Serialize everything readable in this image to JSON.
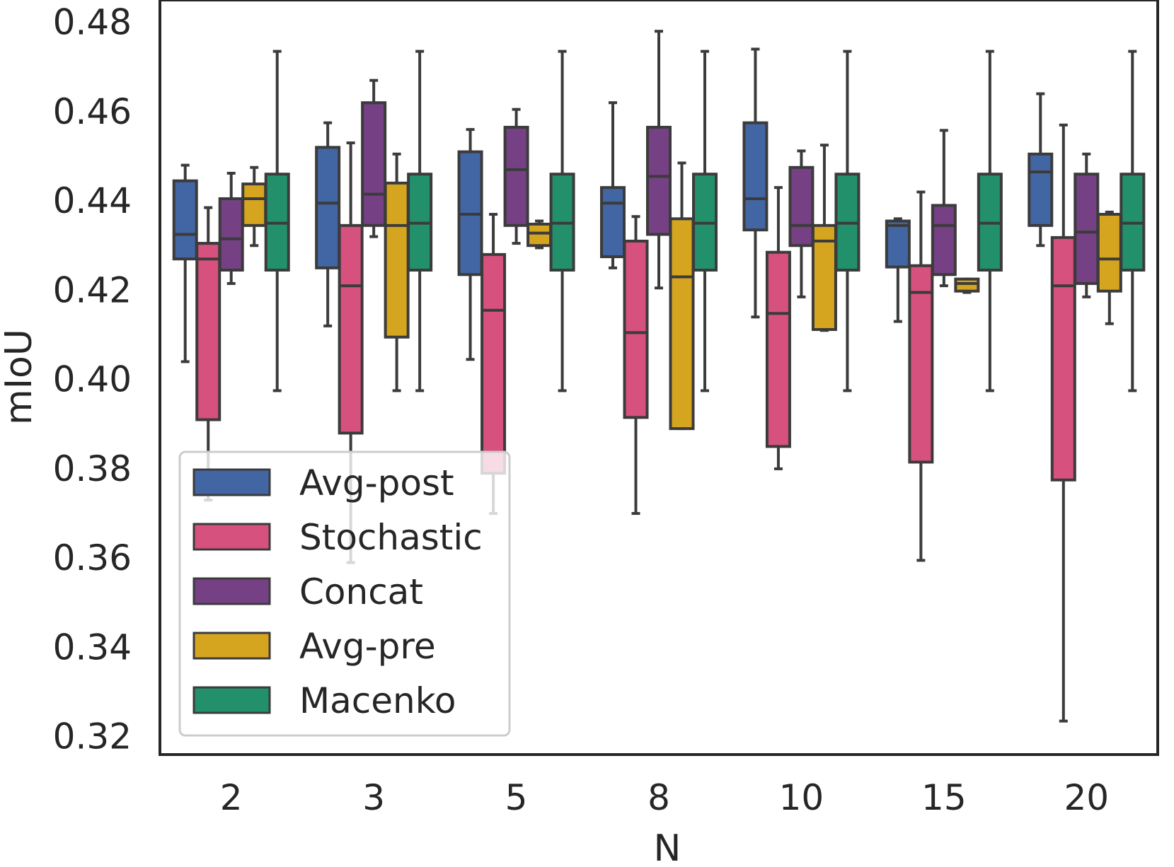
{
  "chart_data": {
    "type": "boxplot",
    "xlabel": "N",
    "ylabel": "mIoU",
    "ylim": [
      0.316,
      0.485
    ],
    "yticks": [
      "0.32",
      "0.34",
      "0.36",
      "0.38",
      "0.40",
      "0.42",
      "0.44",
      "0.46",
      "0.48"
    ],
    "categories": [
      "2",
      "3",
      "5",
      "8",
      "10",
      "15",
      "20"
    ],
    "legend_position": "lower-left",
    "series": [
      {
        "name": "Avg-post",
        "color": "#4266a3",
        "boxes": [
          {
            "whislo": 0.404,
            "q1": 0.427,
            "med": 0.4325,
            "q3": 0.4445,
            "whishi": 0.448
          },
          {
            "whislo": 0.412,
            "q1": 0.425,
            "med": 0.4395,
            "q3": 0.452,
            "whishi": 0.4575
          },
          {
            "whislo": 0.4045,
            "q1": 0.4235,
            "med": 0.437,
            "q3": 0.451,
            "whishi": 0.456
          },
          {
            "whislo": 0.425,
            "q1": 0.4275,
            "med": 0.4395,
            "q3": 0.443,
            "whishi": 0.462
          },
          {
            "whislo": 0.414,
            "q1": 0.4335,
            "med": 0.4405,
            "q3": 0.4575,
            "whishi": 0.474
          },
          {
            "whislo": 0.413,
            "q1": 0.4252,
            "med": 0.4345,
            "q3": 0.4355,
            "whishi": 0.436
          },
          {
            "whislo": 0.43,
            "q1": 0.4345,
            "med": 0.4465,
            "q3": 0.4505,
            "whishi": 0.464
          }
        ]
      },
      {
        "name": "Stochastic",
        "color": "#d6517d",
        "boxes": [
          {
            "whislo": 0.373,
            "q1": 0.391,
            "med": 0.427,
            "q3": 0.4305,
            "whishi": 0.4385
          },
          {
            "whislo": 0.359,
            "q1": 0.388,
            "med": 0.421,
            "q3": 0.4345,
            "whishi": 0.453
          },
          {
            "whislo": 0.37,
            "q1": 0.379,
            "med": 0.4155,
            "q3": 0.428,
            "whishi": 0.437
          },
          {
            "whislo": 0.37,
            "q1": 0.3915,
            "med": 0.4105,
            "q3": 0.431,
            "whishi": 0.4365
          },
          {
            "whislo": 0.38,
            "q1": 0.385,
            "med": 0.4148,
            "q3": 0.4285,
            "whishi": 0.443
          },
          {
            "whislo": 0.3595,
            "q1": 0.3815,
            "med": 0.4195,
            "q3": 0.4255,
            "whishi": 0.442
          },
          {
            "whislo": 0.3235,
            "q1": 0.3775,
            "med": 0.421,
            "q3": 0.4318,
            "whishi": 0.457
          }
        ]
      },
      {
        "name": "Concat",
        "color": "#754084",
        "boxes": [
          {
            "whislo": 0.4215,
            "q1": 0.4245,
            "med": 0.4315,
            "q3": 0.4405,
            "whishi": 0.4462
          },
          {
            "whislo": 0.432,
            "q1": 0.4345,
            "med": 0.4415,
            "q3": 0.462,
            "whishi": 0.467
          },
          {
            "whislo": 0.4305,
            "q1": 0.4345,
            "med": 0.447,
            "q3": 0.4565,
            "whishi": 0.4605
          },
          {
            "whislo": 0.4205,
            "q1": 0.4325,
            "med": 0.4455,
            "q3": 0.4565,
            "whishi": 0.478
          },
          {
            "whislo": 0.4185,
            "q1": 0.43,
            "med": 0.4345,
            "q3": 0.4475,
            "whishi": 0.4512
          },
          {
            "whislo": 0.421,
            "q1": 0.4235,
            "med": 0.4345,
            "q3": 0.439,
            "whishi": 0.4558
          },
          {
            "whislo": 0.4185,
            "q1": 0.4215,
            "med": 0.433,
            "q3": 0.446,
            "whishi": 0.4505
          }
        ]
      },
      {
        "name": "Avg-pre",
        "color": "#d6a520",
        "boxes": [
          {
            "whislo": 0.43,
            "q1": 0.4345,
            "med": 0.4405,
            "q3": 0.4438,
            "whishi": 0.4475
          },
          {
            "whislo": 0.3975,
            "q1": 0.4095,
            "med": 0.4345,
            "q3": 0.444,
            "whishi": 0.4505
          },
          {
            "whislo": 0.4295,
            "q1": 0.43,
            "med": 0.4328,
            "q3": 0.4348,
            "whishi": 0.4355
          },
          {
            "whislo": 0.389,
            "q1": 0.389,
            "med": 0.423,
            "q3": 0.436,
            "whishi": 0.4485
          },
          {
            "whislo": 0.411,
            "q1": 0.4112,
            "med": 0.431,
            "q3": 0.4345,
            "whishi": 0.4525
          },
          {
            "whislo": 0.4195,
            "q1": 0.4198,
            "med": 0.4215,
            "q3": 0.4225,
            "whishi": 0.4225
          },
          {
            "whislo": 0.4125,
            "q1": 0.4198,
            "med": 0.427,
            "q3": 0.437,
            "whishi": 0.4375
          }
        ]
      },
      {
        "name": "Macenko",
        "color": "#23906c",
        "boxes": [
          {
            "whislo": 0.3975,
            "q1": 0.4245,
            "med": 0.435,
            "q3": 0.446,
            "whishi": 0.4735
          },
          {
            "whislo": 0.3975,
            "q1": 0.4245,
            "med": 0.435,
            "q3": 0.446,
            "whishi": 0.4735
          },
          {
            "whislo": 0.3975,
            "q1": 0.4245,
            "med": 0.435,
            "q3": 0.446,
            "whishi": 0.4735
          },
          {
            "whislo": 0.3975,
            "q1": 0.4245,
            "med": 0.435,
            "q3": 0.446,
            "whishi": 0.4735
          },
          {
            "whislo": 0.3975,
            "q1": 0.4245,
            "med": 0.435,
            "q3": 0.446,
            "whishi": 0.4735
          },
          {
            "whislo": 0.3975,
            "q1": 0.4245,
            "med": 0.435,
            "q3": 0.446,
            "whishi": 0.4735
          },
          {
            "whislo": 0.3975,
            "q1": 0.4245,
            "med": 0.435,
            "q3": 0.446,
            "whishi": 0.4735
          }
        ]
      }
    ]
  }
}
